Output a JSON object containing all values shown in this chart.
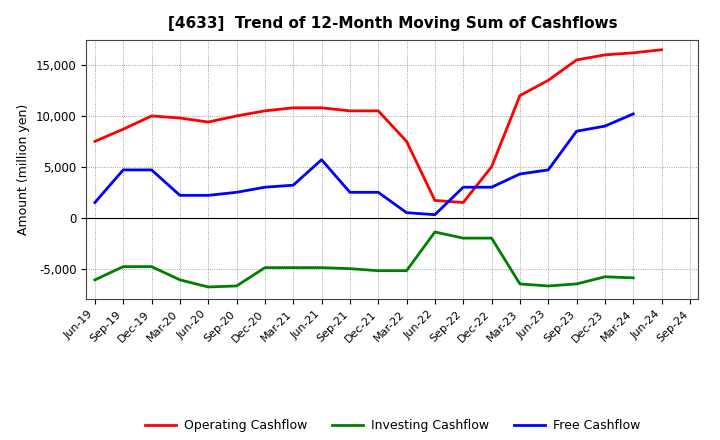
{
  "title": "[4633]  Trend of 12-Month Moving Sum of Cashflows",
  "ylabel": "Amount (million yen)",
  "x_labels": [
    "Jun-19",
    "Sep-19",
    "Dec-19",
    "Mar-20",
    "Jun-20",
    "Sep-20",
    "Dec-20",
    "Mar-21",
    "Jun-21",
    "Sep-21",
    "Dec-21",
    "Mar-22",
    "Jun-22",
    "Sep-22",
    "Dec-22",
    "Mar-23",
    "Jun-23",
    "Sep-23",
    "Dec-23",
    "Mar-24",
    "Jun-24",
    "Sep-24"
  ],
  "operating": [
    7500,
    8700,
    10000,
    9800,
    9400,
    10000,
    10500,
    10800,
    10800,
    10500,
    10500,
    7500,
    1700,
    1500,
    5000,
    12000,
    13500,
    15500,
    16000,
    16200,
    16500,
    null
  ],
  "investing": [
    -6100,
    -4800,
    -4800,
    -6100,
    -6800,
    -6700,
    -4900,
    -4900,
    -4900,
    -5000,
    -5200,
    -5200,
    -1400,
    -2000,
    -2000,
    -6500,
    -6700,
    -6500,
    -5800,
    -5900,
    null,
    null
  ],
  "free": [
    1500,
    4700,
    4700,
    2200,
    2200,
    2500,
    3000,
    3200,
    5700,
    2500,
    2500,
    500,
    300,
    3000,
    3000,
    4300,
    4700,
    8500,
    9000,
    10200,
    null,
    null
  ],
  "ylim": [
    -8000,
    17500
  ],
  "yticks": [
    -5000,
    0,
    5000,
    10000,
    15000
  ],
  "operating_color": "#FF0000",
  "investing_color": "#008000",
  "free_color": "#0000FF",
  "bg_color": "#FFFFFF",
  "plot_bg": "#FFFFFF",
  "grid_color": "#AAAAAA",
  "linewidth": 2.0
}
